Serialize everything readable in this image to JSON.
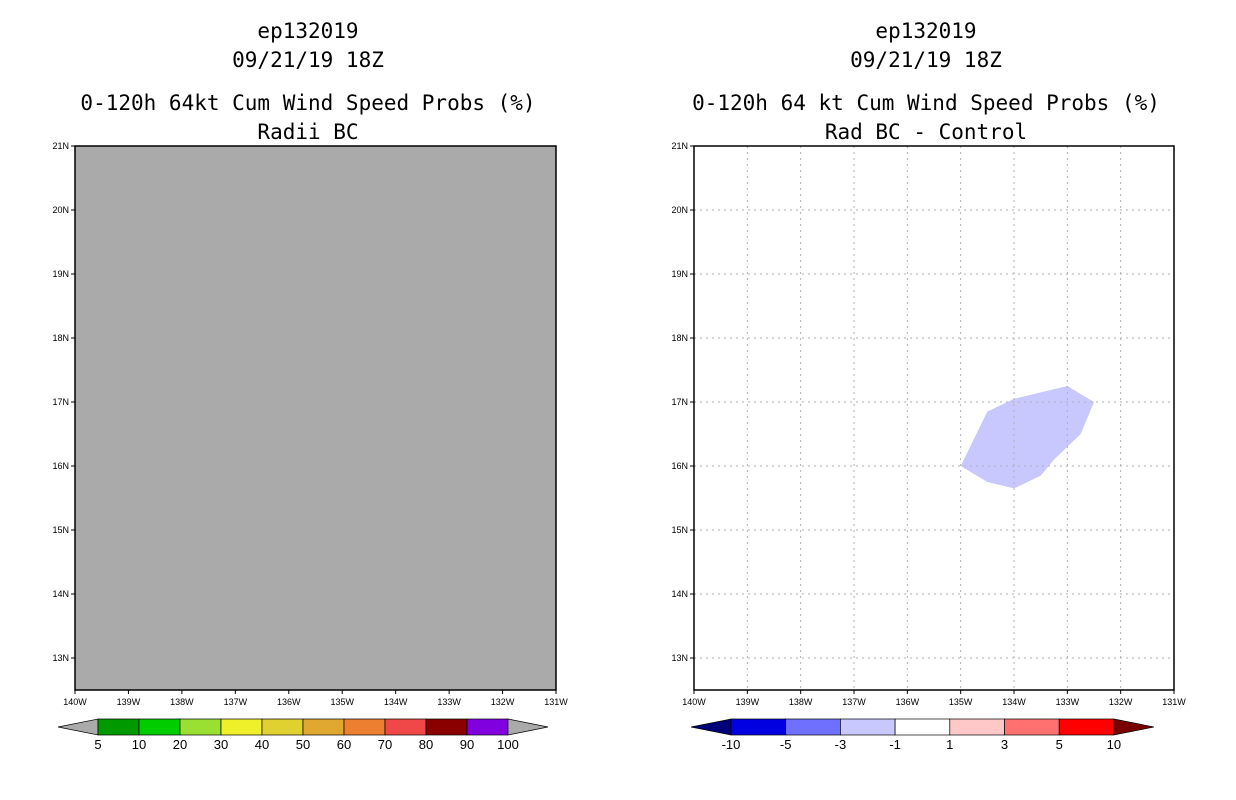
{
  "panels": [
    {
      "title_lines": [
        "ep132019",
        "09/21/19 18Z",
        "0-120h 64kt Cum Wind Speed Probs (%)",
        "Radii BC"
      ]
    },
    {
      "title_lines": [
        "ep132019",
        "09/21/19 18Z",
        "0-120h 64 kt Cum Wind Speed Probs (%)",
        "Rad BC - Control"
      ]
    }
  ],
  "chart_data": [
    {
      "type": "heatmap",
      "title": "0-120h 64kt Cum Wind Speed Probs (%)",
      "subtitle": "Radii BC",
      "storm": "ep132019",
      "datetime": "09/21/19 18Z",
      "xlim": [
        -140,
        -131
      ],
      "ylim": [
        12.5,
        21
      ],
      "x_ticks": [
        -140,
        -139,
        -138,
        -137,
        -136,
        -135,
        -134,
        -133,
        -132,
        -131
      ],
      "x_tick_labels": [
        "140W",
        "139W",
        "138W",
        "137W",
        "136W",
        "135W",
        "134W",
        "133W",
        "132W",
        "131W"
      ],
      "y_ticks": [
        13,
        14,
        15,
        16,
        17,
        18,
        19,
        20,
        21
      ],
      "y_tick_labels": [
        "13N",
        "14N",
        "15N",
        "16N",
        "17N",
        "18N",
        "19N",
        "20N",
        "21N"
      ],
      "grid": false,
      "fill_color": "#aaaaaa",
      "fill_description": "uniform gray (below lowest contour, no data)",
      "colorbar": {
        "labels": [
          "5",
          "10",
          "20",
          "30",
          "40",
          "50",
          "60",
          "70",
          "80",
          "90",
          "100"
        ],
        "colors": [
          "#009900",
          "#00cc00",
          "#99e033",
          "#f0f02a",
          "#e0d030",
          "#e0a830",
          "#ec8030",
          "#f04848",
          "#8a0000",
          "#8000e0"
        ],
        "under_color": "#aaaaaa",
        "over_color": "#aaaaaa"
      }
    },
    {
      "type": "heatmap",
      "title": "0-120h 64 kt Cum Wind Speed Probs (%)",
      "subtitle": "Rad BC - Control",
      "storm": "ep132019",
      "datetime": "09/21/19 18Z",
      "xlim": [
        -140,
        -131
      ],
      "ylim": [
        12.5,
        21
      ],
      "x_ticks": [
        -140,
        -139,
        -138,
        -137,
        -136,
        -135,
        -134,
        -133,
        -132,
        -131
      ],
      "x_tick_labels": [
        "140W",
        "139W",
        "138W",
        "137W",
        "136W",
        "135W",
        "134W",
        "133W",
        "132W",
        "131W"
      ],
      "y_ticks": [
        13,
        14,
        15,
        16,
        17,
        18,
        19,
        20,
        21
      ],
      "y_tick_labels": [
        "13N",
        "14N",
        "15N",
        "16N",
        "17N",
        "18N",
        "19N",
        "20N",
        "21N"
      ],
      "grid": true,
      "contour_regions": [
        {
          "range": "-3 to -1",
          "color": "#c8c8ff",
          "polygon_lonlat": [
            [
              -135.0,
              16.0
            ],
            [
              -134.5,
              16.85
            ],
            [
              -134.0,
              17.05
            ],
            [
              -133.5,
              17.15
            ],
            [
              -133.0,
              17.25
            ],
            [
              -132.5,
              17.0
            ],
            [
              -132.75,
              16.5
            ],
            [
              -133.25,
              16.1
            ],
            [
              -133.5,
              15.85
            ],
            [
              -134.0,
              15.65
            ],
            [
              -134.5,
              15.75
            ]
          ]
        }
      ],
      "colorbar": {
        "labels": [
          "-10",
          "-5",
          "-3",
          "-1",
          "1",
          "3",
          "5",
          "10"
        ],
        "colors": [
          "#0000e0",
          "#7070ff",
          "#c8c8ff",
          "#ffffff",
          "#ffc8c8",
          "#ff7070",
          "#ff0000"
        ],
        "under_color": "#00007a",
        "over_color": "#7a0000"
      }
    }
  ]
}
